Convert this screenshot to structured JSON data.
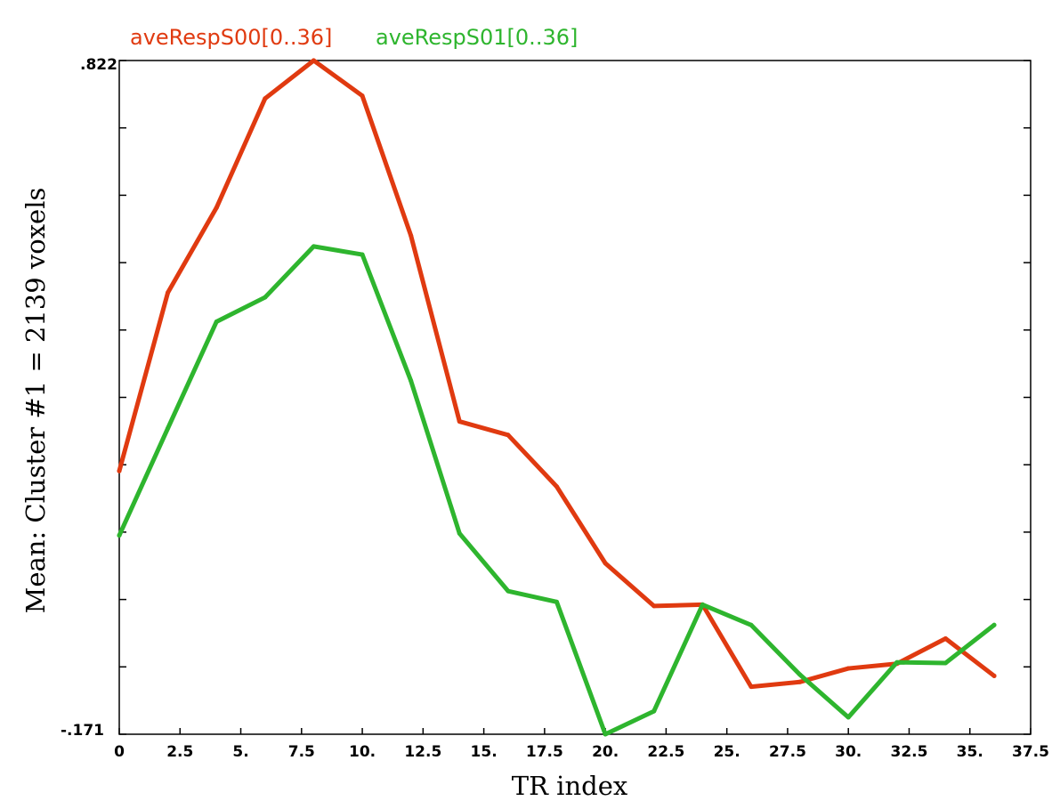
{
  "chart_data": {
    "type": "line",
    "xlabel": "TR index",
    "ylabel": "Mean: Cluster #1 = 2139 voxels",
    "xlim": [
      0,
      37.5
    ],
    "ylim": [
      -0.171,
      0.822
    ],
    "x_ticks": [
      "0",
      "2.5",
      "5.",
      "7.5",
      "10.",
      "12.5",
      "15.",
      "17.5",
      "20.",
      "22.5",
      "25.",
      "27.5",
      "30.",
      "32.5",
      "35.",
      "37.5"
    ],
    "y_tick_labels": [
      ".822",
      "-.171"
    ],
    "grid": false,
    "legend_position": "top-left",
    "x": [
      0,
      2,
      4,
      6,
      8,
      10,
      12,
      14,
      16,
      18,
      20,
      22,
      24,
      26,
      28,
      30,
      32,
      34,
      36
    ],
    "series": [
      {
        "name": "aveRespS00[0..36]",
        "color": "#e03a10",
        "values": [
          0.217,
          0.48,
          0.605,
          0.766,
          0.822,
          0.77,
          0.564,
          0.29,
          0.27,
          0.194,
          0.081,
          0.018,
          0.02,
          -0.101,
          -0.094,
          -0.074,
          -0.067,
          -0.03,
          -0.085
        ]
      },
      {
        "name": "aveRespS01[0..36]",
        "color": "#2eb52e",
        "values": [
          0.122,
          0.28,
          0.437,
          0.473,
          0.548,
          0.536,
          0.35,
          0.125,
          0.04,
          0.024,
          -0.171,
          -0.137,
          0.02,
          -0.01,
          -0.083,
          -0.146,
          -0.065,
          -0.066,
          -0.01
        ]
      }
    ]
  }
}
